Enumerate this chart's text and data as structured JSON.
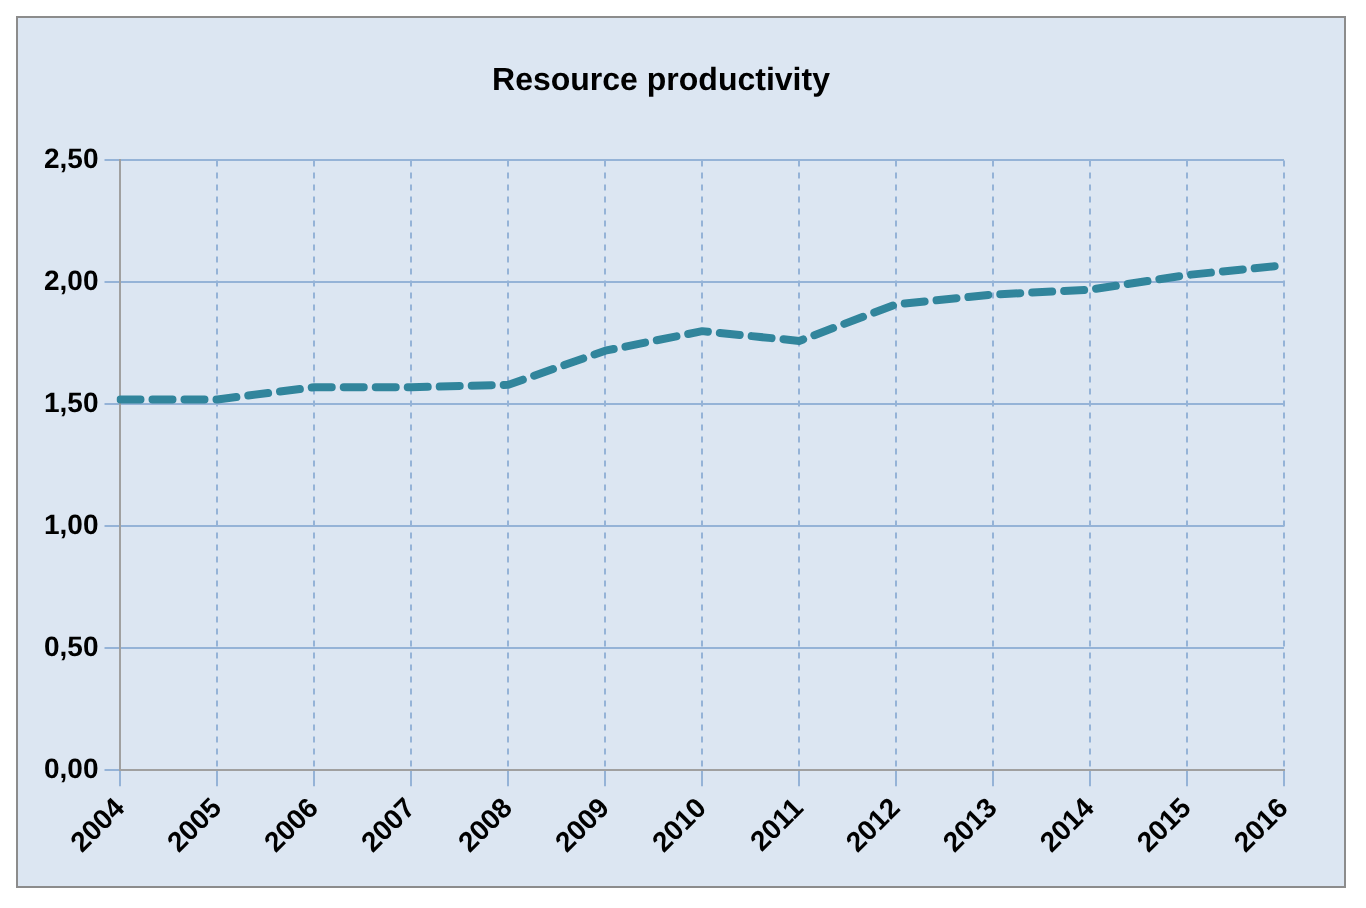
{
  "chart_data": {
    "type": "line",
    "title": "Resource productivity",
    "categories": [
      "2004",
      "2005",
      "2006",
      "2007",
      "2008",
      "2009",
      "2010",
      "2011",
      "2012",
      "2013",
      "2014",
      "2015",
      "2016"
    ],
    "series": [
      {
        "color": "#31859c",
        "values": [
          1.52,
          1.52,
          1.57,
          1.57,
          1.58,
          1.72,
          1.8,
          1.76,
          1.91,
          1.95,
          1.97,
          2.03,
          2.07
        ]
      }
    ],
    "ylim": [
      0,
      2.5
    ],
    "yticks": [
      {
        "value": 0,
        "label": "0,00"
      },
      {
        "value": 0.5,
        "label": "0,50"
      },
      {
        "value": 1,
        "label": "1,00"
      },
      {
        "value": 1.5,
        "label": "1,50"
      },
      {
        "value": 2,
        "label": "2,00"
      },
      {
        "value": 2.5,
        "label": "2,50"
      }
    ],
    "grid": true,
    "legend": false,
    "marker": "none",
    "line_style": "dashed"
  }
}
